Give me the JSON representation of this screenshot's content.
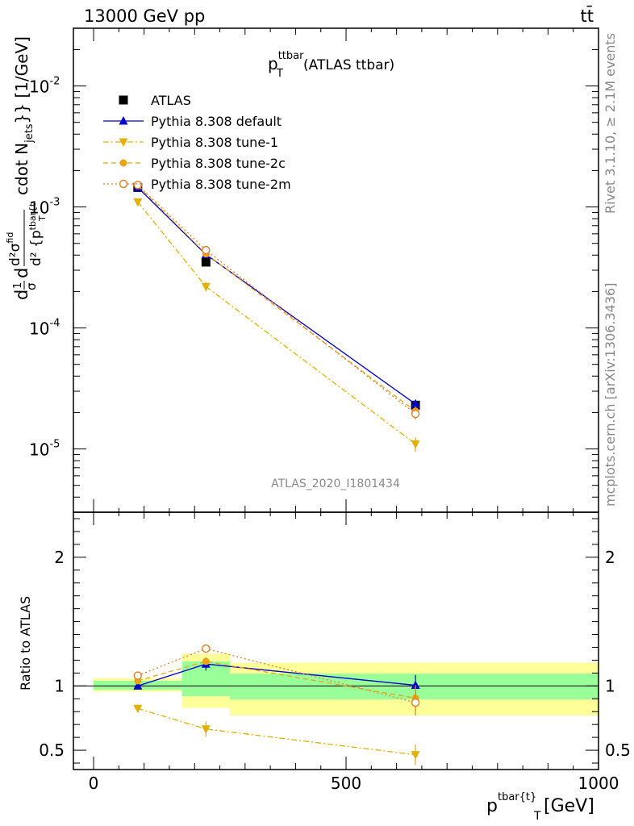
{
  "header": {
    "left": "13000 GeV pp",
    "right": "tt̄"
  },
  "side": {
    "rivet": "Rivet 3.1.10, ≥ 2.1M events",
    "mcplots": "mcplots.cern.ch [arXiv:1306.3436]"
  },
  "chart_data": [
    {
      "type": "line",
      "title_main": "p",
      "title_sup": "ttbar",
      "title_sub": "T",
      "title_rest": " (ATLAS ttbar)",
      "analysis_tag": "ATLAS_2020_I1801434",
      "ylabel": "d¹⁄σ d d²σᶦⁿᵈ ⁄ d²{pᵀ tbar{t} cdot N_jets}} [1/GeV]",
      "ylabel_parts": {
        "a": "d",
        "b": "1",
        "c": "σ",
        "d": "d",
        "e": "d²σ",
        "f": "fid",
        "g": "d² {p",
        "h": "tbar{t",
        "i": "T",
        "j": "cdot N",
        "k": "jets",
        "l": "}} [1/GeV]"
      },
      "yscale": "log",
      "ylim": [
        3e-06,
        0.03
      ],
      "xlim": [
        -40,
        1000
      ],
      "yticks": [
        {
          "exp": "-5",
          "value": 1e-05
        },
        {
          "exp": "-4",
          "value": 0.0001
        },
        {
          "exp": "-3",
          "value": 0.001
        },
        {
          "exp": "-2",
          "value": 0.01
        }
      ],
      "legend_position": "top-left",
      "x": [
        87.5,
        222.5,
        637.5
      ],
      "series": [
        {
          "name": "ATLAS",
          "color": "#000000",
          "marker": "square",
          "values": [
            0.00145,
            0.00035,
            2.3e-05
          ],
          "err": [
            4e-05,
            1e-05,
            2.5e-06
          ]
        },
        {
          "name": "Pythia 8.308 default",
          "color": "#0000cc",
          "marker": "triangle-up",
          "line": "solid",
          "values": [
            0.00145,
            0.000405,
            2.35e-05
          ],
          "err": [
            0,
            0,
            2e-06
          ]
        },
        {
          "name": "Pythia 8.308 tune-1",
          "color": "#e3b000",
          "marker": "triangle-down",
          "line": "dashdot",
          "values": [
            0.0011,
            0.00022,
            1.1e-05
          ],
          "err": [
            0,
            2e-05,
            1.5e-06
          ]
        },
        {
          "name": "Pythia 8.308 tune-2c",
          "color": "#e8a317",
          "marker": "circle",
          "line": "dashed",
          "values": [
            0.0015,
            0.00041,
            2.05e-05
          ],
          "err": [
            0,
            0,
            2e-06
          ]
        },
        {
          "name": "Pythia 8.308 tune-2m",
          "color": "#e2832b",
          "marker": "circle-open",
          "line": "dotted",
          "values": [
            0.00152,
            0.00044,
            1.95e-05
          ],
          "err": [
            0,
            0,
            2e-06
          ]
        }
      ]
    },
    {
      "type": "line",
      "ylabel": "Ratio to ATLAS",
      "xlabel_main": "p",
      "xlabel_sup": "tbar{t}",
      "xlabel_sub": "T",
      "xlabel_rest": " [GeV]",
      "ylim": [
        0.35,
        2.35
      ],
      "xlim": [
        -40,
        1000
      ],
      "xticks": [
        {
          "label": "0",
          "value": 0
        },
        {
          "label": "500",
          "value": 500
        },
        {
          "label": "1000",
          "value": 1000
        }
      ],
      "yticks": [
        {
          "label": "0.5",
          "value": 0.5
        },
        {
          "label": "1",
          "value": 1
        },
        {
          "label": "2",
          "value": 2
        }
      ],
      "bands": [
        {
          "x": [
            0,
            175
          ],
          "yellow": [
            0.955,
            1.06
          ],
          "green": [
            0.97,
            1.04
          ]
        },
        {
          "x": [
            175,
            270
          ],
          "yellow": [
            0.83,
            1.25
          ],
          "green": [
            0.92,
            1.19
          ]
        },
        {
          "x": [
            270,
            1000
          ],
          "yellow": [
            0.77,
            1.18
          ],
          "green": [
            0.895,
            1.095
          ]
        }
      ],
      "x": [
        87.5,
        222.5,
        637.5
      ],
      "series": [
        {
          "name": "Pythia 8.308 default",
          "color": "#0000cc",
          "marker": "triangle-up",
          "line": "solid",
          "values": [
            1.0,
            1.17,
            1.005
          ],
          "err": [
            0,
            0.05,
            0.08
          ]
        },
        {
          "name": "Pythia 8.308 tune-1",
          "color": "#e3b000",
          "marker": "triangle-down",
          "line": "dashdot",
          "values": [
            0.825,
            0.665,
            0.465
          ],
          "err": [
            0.02,
            0.06,
            0.08
          ]
        },
        {
          "name": "Pythia 8.308 tune-2c",
          "color": "#e8a317",
          "marker": "circle",
          "line": "dashed",
          "values": [
            1.04,
            1.19,
            0.905
          ],
          "err": [
            0,
            0,
            0.1
          ]
        },
        {
          "name": "Pythia 8.308 tune-2m",
          "color": "#e2832b",
          "marker": "circle-open",
          "line": "dotted",
          "values": [
            1.08,
            1.29,
            0.87
          ],
          "err": [
            0,
            0,
            0.1
          ]
        }
      ]
    }
  ]
}
